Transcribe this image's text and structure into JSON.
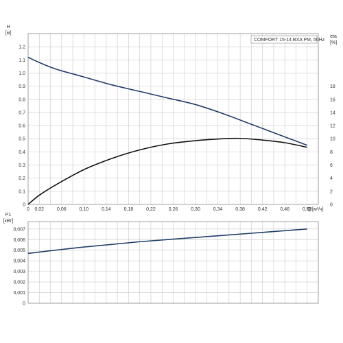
{
  "chart_data": [
    {
      "type": "line",
      "legend": "COMFORT 15-14 BXA PM, 50Hz",
      "legend_position": "top-right",
      "x_label": "Q",
      "x_unit": "[м³/ч]",
      "x_ticks": [
        "0",
        "0,02",
        "0,06",
        "0,10",
        "0,14",
        "0,18",
        "0,22",
        "0,26",
        "0,30",
        "0,34",
        "0,38",
        "0,42",
        "0,46",
        "0,50"
      ],
      "xlim": [
        0,
        0.52
      ],
      "y_left_label": "H",
      "y_left_unit": "[м]",
      "y_left_ticks": [
        "0",
        "0.1",
        "0.2",
        "0.3",
        "0.4",
        "0.5",
        "0.6",
        "0.7",
        "0.8",
        "0.9",
        "1.0",
        "1.1",
        "1.2"
      ],
      "y_left_lim": [
        0,
        1.3
      ],
      "y_right_label": "eta",
      "y_right_unit": "[%]",
      "y_right_ticks": [
        "0",
        "2",
        "4",
        "6",
        "8",
        "10",
        "12",
        "14",
        "16",
        "18"
      ],
      "y_right_lim": [
        0,
        26
      ],
      "grid": true,
      "series": [
        {
          "axis": "left",
          "color": "#1f3d6b",
          "x": [
            0,
            0.02,
            0.05,
            0.1,
            0.15,
            0.2,
            0.25,
            0.3,
            0.35,
            0.4,
            0.45,
            0.5
          ],
          "y": [
            1.12,
            1.08,
            1.03,
            0.97,
            0.91,
            0.86,
            0.81,
            0.76,
            0.69,
            0.61,
            0.53,
            0.45
          ]
        },
        {
          "axis": "right",
          "color": "#111111",
          "x": [
            0,
            0.02,
            0.05,
            0.1,
            0.15,
            0.2,
            0.25,
            0.3,
            0.35,
            0.38,
            0.42,
            0.46,
            0.5
          ],
          "y": [
            0,
            1.4,
            3.0,
            5.3,
            7.0,
            8.3,
            9.2,
            9.7,
            10.0,
            10.05,
            9.8,
            9.4,
            8.7
          ]
        }
      ]
    },
    {
      "type": "line",
      "x_ticks": [],
      "xlim": [
        0,
        0.52
      ],
      "y_left_label": "P1",
      "y_left_unit": "[кВт]",
      "y_left_ticks": [
        "0",
        "0,001",
        "0,002",
        "0,003",
        "0,004",
        "0,005",
        "0,006",
        "0,007"
      ],
      "y_left_lim": [
        0,
        0.0077
      ],
      "grid": true,
      "series": [
        {
          "axis": "left",
          "color": "#1f3d6b",
          "x": [
            0,
            0.1,
            0.2,
            0.3,
            0.4,
            0.5
          ],
          "y": [
            0.0047,
            0.0053,
            0.0058,
            0.0062,
            0.0066,
            0.007
          ]
        }
      ]
    }
  ]
}
